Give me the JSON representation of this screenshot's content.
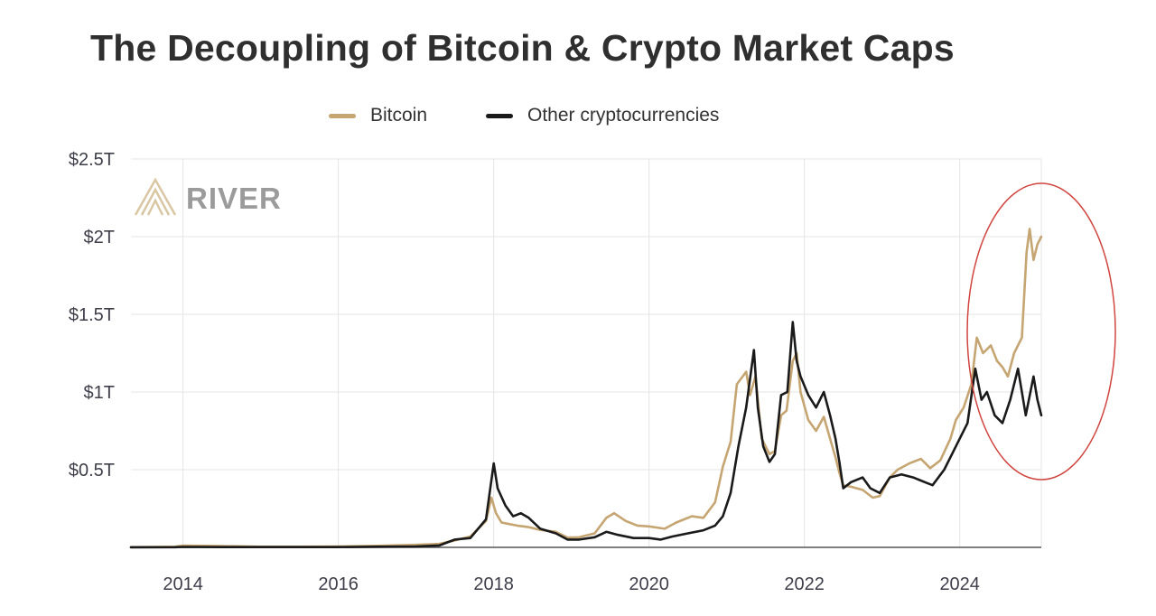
{
  "title": "The Decoupling of Bitcoin & Crypto Market Caps",
  "watermark": "RIVER",
  "colors": {
    "bitcoin": "#c5a572",
    "other": "#1a1a1a",
    "grid": "#e4e4e4",
    "axis": "#3e3e4a",
    "highlight_ellipse": "#d0453f"
  },
  "icons": [
    "river-logo-icon"
  ],
  "chart_data": {
    "type": "line",
    "title": "The Decoupling of Bitcoin & Crypto Market Caps",
    "xlabel": "",
    "ylabel": "",
    "x_ticks": [
      "2014",
      "2016",
      "2018",
      "2020",
      "2022",
      "2024"
    ],
    "y_ticks": [
      "$0.5T",
      "$1T",
      "$1.5T",
      "$2T",
      "$2.5T"
    ],
    "xlim": [
      2013.33,
      2025.05
    ],
    "ylim": [
      0,
      2.5
    ],
    "grid": true,
    "legend_position": "top-center",
    "annotations": [
      "red ellipse highlighting 2024-2025 divergence"
    ],
    "series": [
      {
        "name": "Bitcoin",
        "color": "#c5a572",
        "points": [
          [
            2013.33,
            0.001
          ],
          [
            2013.9,
            0.004
          ],
          [
            2014.0,
            0.011
          ],
          [
            2014.5,
            0.008
          ],
          [
            2015.0,
            0.004
          ],
          [
            2015.5,
            0.004
          ],
          [
            2016.0,
            0.006
          ],
          [
            2016.5,
            0.01
          ],
          [
            2017.0,
            0.016
          ],
          [
            2017.3,
            0.022
          ],
          [
            2017.5,
            0.045
          ],
          [
            2017.7,
            0.07
          ],
          [
            2017.9,
            0.17
          ],
          [
            2017.97,
            0.32
          ],
          [
            2018.03,
            0.22
          ],
          [
            2018.1,
            0.16
          ],
          [
            2018.2,
            0.15
          ],
          [
            2018.3,
            0.14
          ],
          [
            2018.45,
            0.13
          ],
          [
            2018.6,
            0.112
          ],
          [
            2018.8,
            0.1
          ],
          [
            2018.95,
            0.063
          ],
          [
            2019.1,
            0.065
          ],
          [
            2019.3,
            0.09
          ],
          [
            2019.45,
            0.19
          ],
          [
            2019.55,
            0.22
          ],
          [
            2019.7,
            0.17
          ],
          [
            2019.85,
            0.14
          ],
          [
            2020.0,
            0.135
          ],
          [
            2020.2,
            0.12
          ],
          [
            2020.35,
            0.16
          ],
          [
            2020.55,
            0.2
          ],
          [
            2020.7,
            0.19
          ],
          [
            2020.85,
            0.29
          ],
          [
            2020.95,
            0.52
          ],
          [
            2021.05,
            0.68
          ],
          [
            2021.13,
            1.05
          ],
          [
            2021.25,
            1.13
          ],
          [
            2021.3,
            0.98
          ],
          [
            2021.37,
            1.1
          ],
          [
            2021.45,
            0.7
          ],
          [
            2021.55,
            0.6
          ],
          [
            2021.62,
            0.62
          ],
          [
            2021.7,
            0.85
          ],
          [
            2021.77,
            0.88
          ],
          [
            2021.85,
            1.2
          ],
          [
            2021.9,
            1.25
          ],
          [
            2021.95,
            1.0
          ],
          [
            2022.05,
            0.82
          ],
          [
            2022.15,
            0.75
          ],
          [
            2022.25,
            0.84
          ],
          [
            2022.33,
            0.7
          ],
          [
            2022.4,
            0.58
          ],
          [
            2022.45,
            0.48
          ],
          [
            2022.5,
            0.4
          ],
          [
            2022.6,
            0.39
          ],
          [
            2022.75,
            0.37
          ],
          [
            2022.88,
            0.32
          ],
          [
            2022.97,
            0.33
          ],
          [
            2023.1,
            0.45
          ],
          [
            2023.2,
            0.5
          ],
          [
            2023.35,
            0.54
          ],
          [
            2023.5,
            0.57
          ],
          [
            2023.62,
            0.51
          ],
          [
            2023.75,
            0.56
          ],
          [
            2023.88,
            0.7
          ],
          [
            2023.95,
            0.82
          ],
          [
            2024.05,
            0.9
          ],
          [
            2024.15,
            1.05
          ],
          [
            2024.22,
            1.35
          ],
          [
            2024.3,
            1.25
          ],
          [
            2024.4,
            1.3
          ],
          [
            2024.48,
            1.2
          ],
          [
            2024.55,
            1.16
          ],
          [
            2024.62,
            1.1
          ],
          [
            2024.7,
            1.25
          ],
          [
            2024.8,
            1.35
          ],
          [
            2024.86,
            1.9
          ],
          [
            2024.9,
            2.05
          ],
          [
            2024.95,
            1.85
          ],
          [
            2025.0,
            1.95
          ],
          [
            2025.05,
            2.0
          ]
        ]
      },
      {
        "name": "Other cryptocurrencies",
        "color": "#1a1a1a",
        "points": [
          [
            2013.33,
            0.0005
          ],
          [
            2013.9,
            0.001
          ],
          [
            2014.0,
            0.003
          ],
          [
            2014.5,
            0.002
          ],
          [
            2015.0,
            0.002
          ],
          [
            2015.5,
            0.002
          ],
          [
            2016.0,
            0.002
          ],
          [
            2016.5,
            0.004
          ],
          [
            2017.0,
            0.006
          ],
          [
            2017.3,
            0.012
          ],
          [
            2017.5,
            0.05
          ],
          [
            2017.7,
            0.06
          ],
          [
            2017.9,
            0.18
          ],
          [
            2018.0,
            0.54
          ],
          [
            2018.05,
            0.38
          ],
          [
            2018.15,
            0.27
          ],
          [
            2018.25,
            0.2
          ],
          [
            2018.35,
            0.22
          ],
          [
            2018.45,
            0.19
          ],
          [
            2018.6,
            0.12
          ],
          [
            2018.8,
            0.09
          ],
          [
            2018.95,
            0.05
          ],
          [
            2019.1,
            0.05
          ],
          [
            2019.3,
            0.065
          ],
          [
            2019.45,
            0.1
          ],
          [
            2019.6,
            0.08
          ],
          [
            2019.8,
            0.06
          ],
          [
            2020.0,
            0.06
          ],
          [
            2020.15,
            0.05
          ],
          [
            2020.3,
            0.07
          ],
          [
            2020.5,
            0.09
          ],
          [
            2020.7,
            0.11
          ],
          [
            2020.85,
            0.14
          ],
          [
            2020.95,
            0.2
          ],
          [
            2021.05,
            0.35
          ],
          [
            2021.15,
            0.65
          ],
          [
            2021.25,
            0.9
          ],
          [
            2021.35,
            1.27
          ],
          [
            2021.4,
            0.9
          ],
          [
            2021.47,
            0.65
          ],
          [
            2021.55,
            0.55
          ],
          [
            2021.62,
            0.6
          ],
          [
            2021.7,
            0.98
          ],
          [
            2021.78,
            1.0
          ],
          [
            2021.85,
            1.45
          ],
          [
            2021.9,
            1.2
          ],
          [
            2021.95,
            1.1
          ],
          [
            2022.05,
            0.98
          ],
          [
            2022.15,
            0.9
          ],
          [
            2022.25,
            1.0
          ],
          [
            2022.33,
            0.85
          ],
          [
            2022.4,
            0.7
          ],
          [
            2022.45,
            0.55
          ],
          [
            2022.5,
            0.38
          ],
          [
            2022.6,
            0.42
          ],
          [
            2022.75,
            0.45
          ],
          [
            2022.85,
            0.38
          ],
          [
            2022.97,
            0.35
          ],
          [
            2023.1,
            0.45
          ],
          [
            2023.25,
            0.47
          ],
          [
            2023.4,
            0.45
          ],
          [
            2023.55,
            0.42
          ],
          [
            2023.65,
            0.4
          ],
          [
            2023.8,
            0.5
          ],
          [
            2023.92,
            0.62
          ],
          [
            2024.0,
            0.7
          ],
          [
            2024.1,
            0.8
          ],
          [
            2024.2,
            1.15
          ],
          [
            2024.28,
            0.95
          ],
          [
            2024.35,
            1.0
          ],
          [
            2024.45,
            0.85
          ],
          [
            2024.55,
            0.8
          ],
          [
            2024.65,
            0.95
          ],
          [
            2024.75,
            1.15
          ],
          [
            2024.85,
            0.85
          ],
          [
            2024.95,
            1.1
          ],
          [
            2025.0,
            0.95
          ],
          [
            2025.05,
            0.85
          ]
        ]
      }
    ]
  }
}
